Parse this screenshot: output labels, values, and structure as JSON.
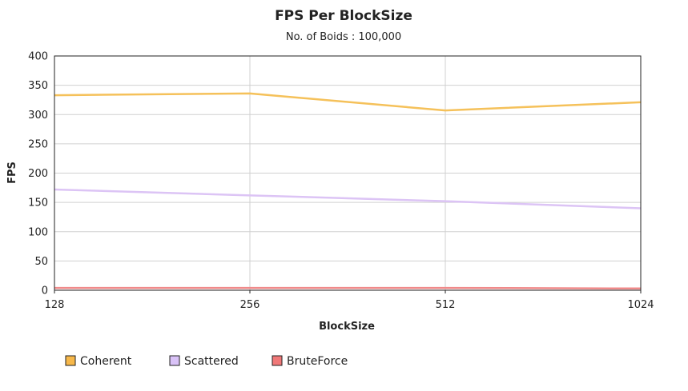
{
  "chart_data": {
    "type": "line",
    "title": "FPS Per BlockSize",
    "subtitle": "No. of Boids : 100,000",
    "xlabel": "BlockSize",
    "ylabel": "FPS",
    "categories": [
      "128",
      "256",
      "512",
      "1024"
    ],
    "ylim": [
      0,
      400
    ],
    "yticks": [
      0,
      50,
      100,
      150,
      200,
      250,
      300,
      350,
      400
    ],
    "grid": true,
    "legend_position": "bottom-left",
    "series": [
      {
        "name": "Coherent",
        "values": [
          333,
          336,
          307,
          321
        ],
        "color": "#f5c15a",
        "fill": "#f7b84a"
      },
      {
        "name": "Scattered",
        "values": [
          172,
          162,
          152,
          140
        ],
        "color": "#dcc4f5",
        "fill": "#d9c2f7"
      },
      {
        "name": "BruteForce",
        "values": [
          4,
          4,
          4,
          3
        ],
        "color": "#f08a8a",
        "fill": "#f07878"
      }
    ]
  }
}
